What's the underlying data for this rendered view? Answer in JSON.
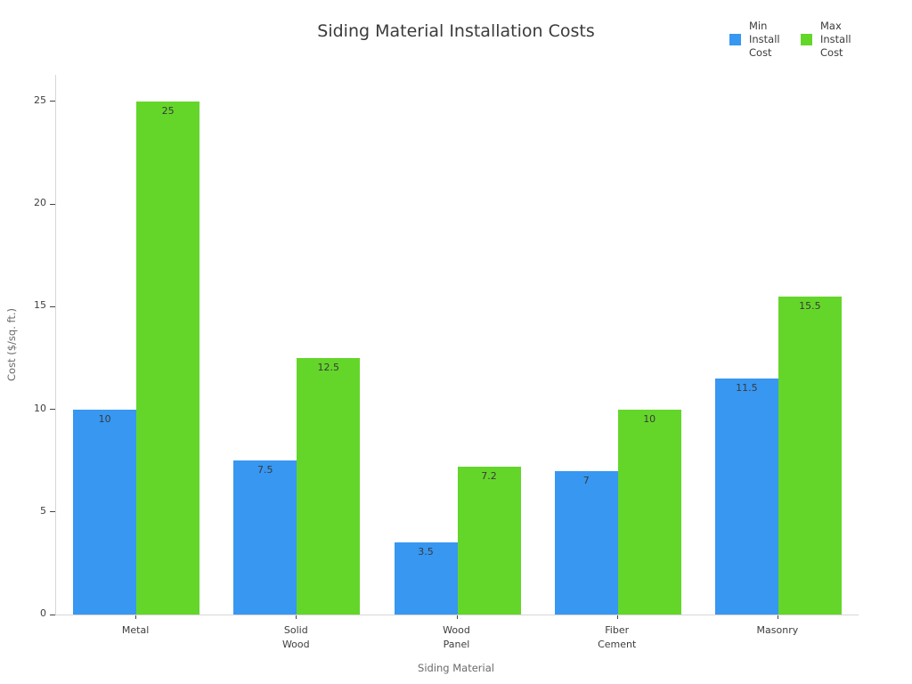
{
  "chart_data": {
    "type": "bar",
    "title": "Siding Material Installation Costs",
    "xlabel": "Siding Material",
    "ylabel": "Cost ($/sq. ft.)",
    "categories": [
      "Metal",
      "Solid Wood",
      "Wood Panel",
      "Fiber Cement",
      "Masonry"
    ],
    "series": [
      {
        "name": "Min Install Cost",
        "color": "#3797F1",
        "values": [
          10,
          7.5,
          3.5,
          7,
          11.5
        ]
      },
      {
        "name": "Max Install Cost",
        "color": "#64D62A",
        "values": [
          25,
          12.5,
          7.2,
          10,
          15.5
        ]
      }
    ],
    "bar_value_labels": [
      [
        "10",
        "7.5",
        "3.5",
        "7",
        "11.5"
      ],
      [
        "25",
        "12.5",
        "7.2",
        "10",
        "15.5"
      ]
    ],
    "yticks": [
      0,
      5,
      10,
      15,
      20,
      25
    ],
    "ylim": [
      0,
      26.3
    ],
    "grid": false,
    "legend_position": "top-right"
  }
}
